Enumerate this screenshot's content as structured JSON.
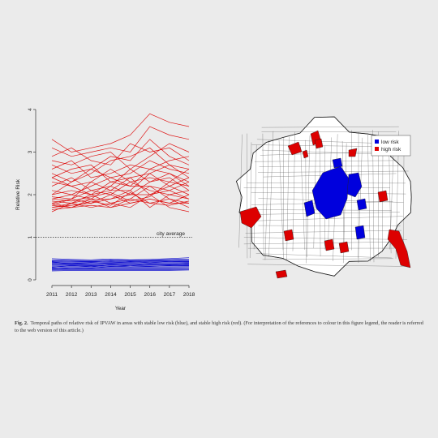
{
  "figure": {
    "caption_label": "Fig. 2.",
    "caption_text": "Temporal paths of relative risk of IPVAW in areas with stable low risk (blue), and stable high risk (red). (For interpretation of the references to colour in this figure legend, the reader is referred to the web version of this article.)"
  },
  "chart_data": [
    {
      "type": "line",
      "xlabel": "Year",
      "ylabel": "Relative Risk",
      "x": [
        2011,
        2012,
        2013,
        2014,
        2015,
        2016,
        2017,
        2018
      ],
      "xlim": [
        2011,
        2018
      ],
      "ylim": [
        0,
        4
      ],
      "yticks": [
        0,
        1,
        2,
        3,
        4
      ],
      "grid": false,
      "reference_line": {
        "y": 1,
        "label": "city average"
      },
      "series_groups": [
        {
          "color": "#dd0000",
          "series": [
            {
              "values": [
                3.3,
                3.0,
                3.1,
                3.2,
                3.4,
                3.9,
                3.7,
                3.6
              ]
            },
            {
              "values": [
                3.1,
                2.9,
                3.0,
                3.1,
                3.0,
                3.6,
                3.4,
                3.3
              ]
            },
            {
              "values": [
                2.9,
                3.1,
                2.8,
                2.7,
                3.2,
                3.0,
                3.1,
                2.8
              ]
            },
            {
              "values": [
                2.8,
                2.7,
                2.9,
                3.0,
                2.6,
                2.9,
                3.2,
                3.0
              ]
            },
            {
              "values": [
                2.7,
                2.5,
                2.6,
                2.9,
                2.8,
                3.3,
                2.9,
                2.7
              ]
            },
            {
              "values": [
                2.6,
                2.8,
                2.4,
                2.5,
                2.7,
                2.6,
                2.8,
                2.9
              ]
            },
            {
              "values": [
                2.5,
                2.3,
                2.6,
                2.4,
                2.5,
                2.8,
                2.6,
                2.5
              ]
            },
            {
              "values": [
                2.4,
                2.6,
                2.7,
                2.3,
                2.4,
                2.5,
                2.7,
                2.4
              ]
            },
            {
              "values": [
                2.3,
                2.2,
                2.3,
                2.6,
                2.3,
                2.4,
                2.3,
                2.6
              ]
            },
            {
              "values": [
                2.2,
                2.4,
                2.1,
                2.2,
                2.6,
                2.3,
                2.5,
                2.2
              ]
            },
            {
              "values": [
                2.1,
                2.0,
                2.2,
                2.4,
                2.2,
                2.2,
                2.1,
                2.3
              ]
            },
            {
              "values": [
                2.0,
                2.1,
                2.0,
                2.1,
                2.1,
                2.5,
                2.2,
                2.0
              ]
            },
            {
              "values": [
                1.95,
                1.9,
                2.1,
                2.0,
                2.3,
                2.1,
                2.0,
                2.1
              ]
            },
            {
              "values": [
                1.9,
                2.0,
                1.9,
                1.9,
                2.0,
                2.0,
                2.1,
                1.9
              ]
            },
            {
              "values": [
                1.85,
                1.8,
                2.0,
                1.8,
                1.9,
                2.2,
                1.9,
                1.8
              ]
            },
            {
              "values": [
                1.8,
                1.9,
                1.8,
                2.0,
                1.8,
                1.9,
                1.8,
                2.0
              ]
            },
            {
              "values": [
                1.75,
                1.7,
                1.9,
                1.7,
                1.9,
                1.8,
                1.9,
                1.7
              ]
            },
            {
              "values": [
                1.7,
                1.8,
                1.7,
                1.8,
                1.7,
                2.0,
                1.7,
                1.6
              ]
            },
            {
              "values": [
                1.7,
                1.75,
                1.8,
                1.9,
                2.1,
                1.7,
                2.0,
                1.9
              ]
            },
            {
              "values": [
                1.65,
                1.7,
                1.75,
                1.7,
                1.8,
                1.9,
                1.8,
                1.8
              ]
            },
            {
              "values": [
                1.6,
                1.8,
                1.9,
                2.2,
                2.0,
                2.3,
                2.4,
                2.1
              ]
            },
            {
              "values": [
                1.75,
                1.9,
                2.3,
                2.1,
                2.4,
                2.0,
                2.2,
                2.4
              ]
            },
            {
              "values": [
                2.0,
                2.3,
                2.5,
                2.8,
                2.9,
                3.1,
                2.7,
                2.6
              ]
            },
            {
              "values": [
                1.9,
                1.85,
                1.95,
                2.05,
                1.85,
                1.95,
                2.3,
                2.2
              ]
            },
            {
              "values": [
                1.8,
                1.7,
                1.85,
                1.75,
                2.05,
                1.8,
                1.75,
                1.85
              ]
            },
            {
              "values": [
                2.4,
                2.2,
                2.0,
                2.3,
                2.2,
                2.6,
                2.5,
                2.3
              ]
            }
          ]
        },
        {
          "color": "#0000cc",
          "series": [
            {
              "values": [
                0.5,
                0.48,
                0.47,
                0.49,
                0.47,
                0.48,
                0.5,
                0.52
              ]
            },
            {
              "values": [
                0.47,
                0.46,
                0.45,
                0.47,
                0.46,
                0.47,
                0.48,
                0.49
              ]
            },
            {
              "values": [
                0.45,
                0.44,
                0.43,
                0.45,
                0.44,
                0.45,
                0.46,
                0.47
              ]
            },
            {
              "values": [
                0.43,
                0.42,
                0.42,
                0.43,
                0.42,
                0.44,
                0.44,
                0.45
              ]
            },
            {
              "values": [
                0.41,
                0.4,
                0.4,
                0.41,
                0.41,
                0.42,
                0.42,
                0.43
              ]
            },
            {
              "values": [
                0.39,
                0.38,
                0.38,
                0.39,
                0.39,
                0.4,
                0.4,
                0.41
              ]
            },
            {
              "values": [
                0.37,
                0.37,
                0.36,
                0.37,
                0.37,
                0.38,
                0.38,
                0.39
              ]
            },
            {
              "values": [
                0.35,
                0.35,
                0.34,
                0.35,
                0.35,
                0.36,
                0.36,
                0.37
              ]
            },
            {
              "values": [
                0.33,
                0.33,
                0.33,
                0.33,
                0.33,
                0.34,
                0.34,
                0.35
              ]
            },
            {
              "values": [
                0.31,
                0.31,
                0.31,
                0.31,
                0.32,
                0.32,
                0.32,
                0.33
              ]
            },
            {
              "values": [
                0.29,
                0.29,
                0.29,
                0.3,
                0.3,
                0.3,
                0.3,
                0.31
              ]
            },
            {
              "values": [
                0.27,
                0.27,
                0.28,
                0.28,
                0.28,
                0.28,
                0.28,
                0.29
              ]
            },
            {
              "values": [
                0.25,
                0.26,
                0.26,
                0.26,
                0.26,
                0.26,
                0.26,
                0.27
              ]
            },
            {
              "values": [
                0.23,
                0.24,
                0.24,
                0.24,
                0.24,
                0.24,
                0.24,
                0.25
              ]
            },
            {
              "values": [
                0.21,
                0.22,
                0.22,
                0.22,
                0.22,
                0.22,
                0.22,
                0.23
              ]
            },
            {
              "values": [
                0.3,
                0.34,
                0.31,
                0.36,
                0.33,
                0.37,
                0.35,
                0.38
              ]
            },
            {
              "values": [
                0.42,
                0.38,
                0.41,
                0.39,
                0.43,
                0.4,
                0.44,
                0.42
              ]
            },
            {
              "values": [
                0.26,
                0.29,
                0.27,
                0.32,
                0.3,
                0.31,
                0.33,
                0.34
              ]
            }
          ]
        }
      ]
    },
    {
      "type": "map",
      "legend": [
        {
          "label": "low risk",
          "color": "#0000dd"
        },
        {
          "label": "high risk",
          "color": "#dd0000"
        }
      ],
      "legend_placement": "top-right"
    }
  ]
}
